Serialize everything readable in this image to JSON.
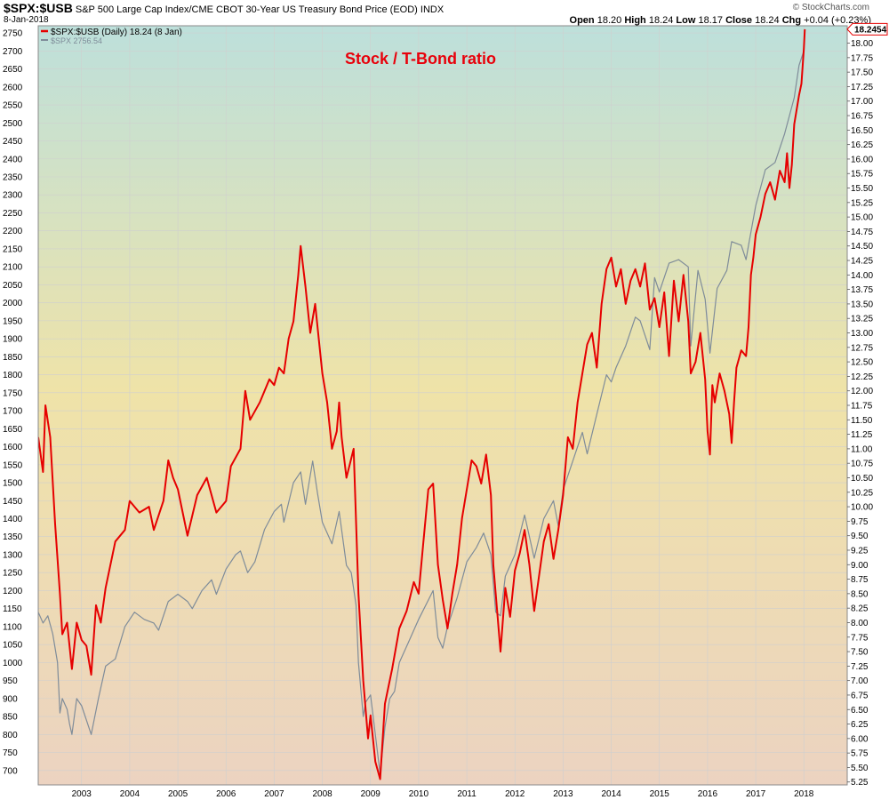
{
  "header": {
    "symbol": "$SPX:$USB",
    "description": "S&P 500 Large Cap Index/CME CBOT 30-Year US Treasury Bond Price (EOD)",
    "exchange": "INDX",
    "date": "8-Jan-2018",
    "watermark": "© StockCharts.com",
    "open_label": "Open",
    "open_value": "18.20",
    "high_label": "High",
    "high_value": "18.24",
    "low_label": "Low",
    "low_value": "18.17",
    "close_label": "Close",
    "close_value": "18.24",
    "chg_label": "Chg",
    "chg_value": "+0.04 (+0.23%)"
  },
  "legend": {
    "ratio_entry": "$SPX:$USB (Daily) 18.24 (8 Jan)",
    "spx_entry": "$SPX 2756.54"
  },
  "annotation": {
    "text": "Stock / T-Bond ratio",
    "color": "#e8000b"
  },
  "last_value_tag": "18.2454",
  "colors": {
    "ratio_line": "#e60000",
    "spx_line": "#7f8c99",
    "bg_top": "#bde0db",
    "bg_mid": "#efe3a8",
    "bg_bottom": "#ecd3c1",
    "grid": "#cfcfcf"
  },
  "chart_data": {
    "type": "line",
    "x_ticks": [
      "2003",
      "2004",
      "2005",
      "2006",
      "2007",
      "2008",
      "2009",
      "2010",
      "2011",
      "2012",
      "2013",
      "2014",
      "2015",
      "2016",
      "2017",
      "2018"
    ],
    "left_ticks": [
      "2750",
      "2700",
      "2650",
      "2600",
      "2550",
      "2500",
      "2450",
      "2400",
      "2350",
      "2300",
      "2250",
      "2200",
      "2150",
      "2100",
      "2050",
      "2000",
      "1950",
      "1900",
      "1850",
      "1800",
      "1750",
      "1700",
      "1650",
      "1600",
      "1550",
      "1500",
      "1450",
      "1400",
      "1350",
      "1300",
      "1250",
      "1200",
      "1150",
      "1100",
      "1050",
      "1000",
      "950",
      "900",
      "850",
      "800",
      "750",
      "700"
    ],
    "right_ticks": [
      "18.00",
      "17.75",
      "17.50",
      "17.25",
      "17.00",
      "16.75",
      "16.50",
      "16.25",
      "16.00",
      "15.75",
      "15.50",
      "15.25",
      "15.00",
      "14.75",
      "14.50",
      "14.25",
      "14.00",
      "13.75",
      "13.50",
      "13.25",
      "13.00",
      "12.75",
      "12.50",
      "12.25",
      "12.00",
      "11.75",
      "11.50",
      "11.25",
      "11.00",
      "10.75",
      "10.50",
      "10.25",
      "10.00",
      "9.75",
      "9.50",
      "9.25",
      "9.00",
      "8.75",
      "8.50",
      "8.25",
      "8.00",
      "7.75",
      "7.50",
      "7.25",
      "7.00",
      "6.75",
      "6.50",
      "6.25",
      "6.00",
      "5.75",
      "5.50",
      "5.25"
    ],
    "left_range": [
      660,
      2770
    ],
    "right_range": [
      5.2,
      18.3
    ],
    "x_range": [
      2002.1,
      2018.9
    ],
    "series": [
      {
        "name": "$SPX:$USB",
        "axis": "right",
        "points": [
          [
            2002.1,
            11.2
          ],
          [
            2002.2,
            10.6
          ],
          [
            2002.25,
            11.75
          ],
          [
            2002.35,
            11.2
          ],
          [
            2002.45,
            9.7
          ],
          [
            2002.55,
            8.5
          ],
          [
            2002.6,
            7.8
          ],
          [
            2002.7,
            8.0
          ],
          [
            2002.8,
            7.2
          ],
          [
            2002.9,
            8.0
          ],
          [
            2003.0,
            7.7
          ],
          [
            2003.1,
            7.6
          ],
          [
            2003.2,
            7.1
          ],
          [
            2003.3,
            8.3
          ],
          [
            2003.4,
            8.0
          ],
          [
            2003.5,
            8.6
          ],
          [
            2003.7,
            9.4
          ],
          [
            2003.9,
            9.6
          ],
          [
            2004.0,
            10.1
          ],
          [
            2004.2,
            9.9
          ],
          [
            2004.4,
            10.0
          ],
          [
            2004.5,
            9.6
          ],
          [
            2004.7,
            10.1
          ],
          [
            2004.8,
            10.8
          ],
          [
            2004.9,
            10.5
          ],
          [
            2005.0,
            10.3
          ],
          [
            2005.2,
            9.5
          ],
          [
            2005.4,
            10.2
          ],
          [
            2005.6,
            10.5
          ],
          [
            2005.8,
            9.9
          ],
          [
            2006.0,
            10.1
          ],
          [
            2006.1,
            10.7
          ],
          [
            2006.3,
            11.0
          ],
          [
            2006.4,
            12.0
          ],
          [
            2006.5,
            11.5
          ],
          [
            2006.7,
            11.8
          ],
          [
            2006.9,
            12.2
          ],
          [
            2007.0,
            12.1
          ],
          [
            2007.1,
            12.4
          ],
          [
            2007.2,
            12.3
          ],
          [
            2007.3,
            12.9
          ],
          [
            2007.4,
            13.2
          ],
          [
            2007.5,
            14.0
          ],
          [
            2007.55,
            14.5
          ],
          [
            2007.65,
            13.8
          ],
          [
            2007.75,
            13.0
          ],
          [
            2007.85,
            13.5
          ],
          [
            2007.95,
            12.7
          ],
          [
            2008.0,
            12.3
          ],
          [
            2008.1,
            11.8
          ],
          [
            2008.2,
            11.0
          ],
          [
            2008.3,
            11.3
          ],
          [
            2008.35,
            11.8
          ],
          [
            2008.4,
            11.2
          ],
          [
            2008.5,
            10.5
          ],
          [
            2008.65,
            11.0
          ],
          [
            2008.75,
            8.5
          ],
          [
            2008.85,
            7.0
          ],
          [
            2008.95,
            6.0
          ],
          [
            2009.0,
            6.4
          ],
          [
            2009.1,
            5.6
          ],
          [
            2009.2,
            5.3
          ],
          [
            2009.3,
            6.6
          ],
          [
            2009.45,
            7.2
          ],
          [
            2009.6,
            7.9
          ],
          [
            2009.75,
            8.2
          ],
          [
            2009.9,
            8.7
          ],
          [
            2010.0,
            8.5
          ],
          [
            2010.1,
            9.4
          ],
          [
            2010.2,
            10.3
          ],
          [
            2010.3,
            10.4
          ],
          [
            2010.4,
            9.0
          ],
          [
            2010.5,
            8.4
          ],
          [
            2010.6,
            7.9
          ],
          [
            2010.7,
            8.5
          ],
          [
            2010.8,
            9.0
          ],
          [
            2010.9,
            9.8
          ],
          [
            2011.0,
            10.3
          ],
          [
            2011.1,
            10.8
          ],
          [
            2011.2,
            10.7
          ],
          [
            2011.3,
            10.4
          ],
          [
            2011.4,
            10.9
          ],
          [
            2011.5,
            10.2
          ],
          [
            2011.55,
            9.0
          ],
          [
            2011.6,
            8.5
          ],
          [
            2011.7,
            7.5
          ],
          [
            2011.8,
            8.6
          ],
          [
            2011.9,
            8.1
          ],
          [
            2012.0,
            8.9
          ],
          [
            2012.1,
            9.2
          ],
          [
            2012.2,
            9.6
          ],
          [
            2012.3,
            9.0
          ],
          [
            2012.4,
            8.2
          ],
          [
            2012.5,
            8.8
          ],
          [
            2012.6,
            9.4
          ],
          [
            2012.7,
            9.7
          ],
          [
            2012.8,
            9.1
          ],
          [
            2012.9,
            9.6
          ],
          [
            2013.0,
            10.2
          ],
          [
            2013.1,
            11.2
          ],
          [
            2013.2,
            11.0
          ],
          [
            2013.3,
            11.8
          ],
          [
            2013.4,
            12.3
          ],
          [
            2013.5,
            12.8
          ],
          [
            2013.6,
            13.0
          ],
          [
            2013.7,
            12.4
          ],
          [
            2013.8,
            13.5
          ],
          [
            2013.9,
            14.1
          ],
          [
            2014.0,
            14.3
          ],
          [
            2014.1,
            13.8
          ],
          [
            2014.2,
            14.1
          ],
          [
            2014.3,
            13.5
          ],
          [
            2014.4,
            13.9
          ],
          [
            2014.5,
            14.1
          ],
          [
            2014.6,
            13.8
          ],
          [
            2014.7,
            14.2
          ],
          [
            2014.8,
            13.4
          ],
          [
            2014.9,
            13.6
          ],
          [
            2015.0,
            13.1
          ],
          [
            2015.1,
            13.7
          ],
          [
            2015.2,
            12.6
          ],
          [
            2015.3,
            13.9
          ],
          [
            2015.4,
            13.2
          ],
          [
            2015.5,
            14.0
          ],
          [
            2015.6,
            13.2
          ],
          [
            2015.65,
            12.3
          ],
          [
            2015.75,
            12.5
          ],
          [
            2015.85,
            13.0
          ],
          [
            2015.95,
            12.2
          ],
          [
            2016.0,
            11.3
          ],
          [
            2016.05,
            10.9
          ],
          [
            2016.1,
            12.1
          ],
          [
            2016.15,
            11.8
          ],
          [
            2016.25,
            12.3
          ],
          [
            2016.35,
            12.0
          ],
          [
            2016.45,
            11.6
          ],
          [
            2016.5,
            11.1
          ],
          [
            2016.55,
            11.8
          ],
          [
            2016.6,
            12.4
          ],
          [
            2016.7,
            12.7
          ],
          [
            2016.8,
            12.6
          ],
          [
            2016.85,
            13.1
          ],
          [
            2016.9,
            14.0
          ],
          [
            2016.95,
            14.3
          ],
          [
            2017.0,
            14.7
          ],
          [
            2017.1,
            15.0
          ],
          [
            2017.2,
            15.4
          ],
          [
            2017.3,
            15.6
          ],
          [
            2017.4,
            15.3
          ],
          [
            2017.5,
            15.8
          ],
          [
            2017.6,
            15.6
          ],
          [
            2017.65,
            16.1
          ],
          [
            2017.7,
            15.5
          ],
          [
            2017.75,
            15.9
          ],
          [
            2017.8,
            16.6
          ],
          [
            2017.9,
            17.1
          ],
          [
            2017.95,
            17.3
          ],
          [
            2018.0,
            17.9
          ],
          [
            2018.02,
            18.24
          ]
        ]
      },
      {
        "name": "$SPX",
        "axis": "left",
        "points": [
          [
            2002.1,
            1140
          ],
          [
            2002.2,
            1110
          ],
          [
            2002.3,
            1130
          ],
          [
            2002.4,
            1080
          ],
          [
            2002.5,
            1000
          ],
          [
            2002.55,
            860
          ],
          [
            2002.6,
            900
          ],
          [
            2002.7,
            870
          ],
          [
            2002.75,
            830
          ],
          [
            2002.8,
            800
          ],
          [
            2002.9,
            900
          ],
          [
            2003.0,
            880
          ],
          [
            2003.1,
            840
          ],
          [
            2003.2,
            800
          ],
          [
            2003.35,
            900
          ],
          [
            2003.5,
            990
          ],
          [
            2003.7,
            1010
          ],
          [
            2003.9,
            1100
          ],
          [
            2004.1,
            1140
          ],
          [
            2004.3,
            1120
          ],
          [
            2004.5,
            1110
          ],
          [
            2004.6,
            1090
          ],
          [
            2004.8,
            1170
          ],
          [
            2005.0,
            1190
          ],
          [
            2005.2,
            1170
          ],
          [
            2005.3,
            1150
          ],
          [
            2005.5,
            1200
          ],
          [
            2005.7,
            1230
          ],
          [
            2005.8,
            1190
          ],
          [
            2006.0,
            1260
          ],
          [
            2006.2,
            1300
          ],
          [
            2006.3,
            1310
          ],
          [
            2006.45,
            1250
          ],
          [
            2006.6,
            1280
          ],
          [
            2006.8,
            1370
          ],
          [
            2007.0,
            1420
          ],
          [
            2007.15,
            1440
          ],
          [
            2007.2,
            1390
          ],
          [
            2007.4,
            1500
          ],
          [
            2007.55,
            1530
          ],
          [
            2007.65,
            1440
          ],
          [
            2007.8,
            1560
          ],
          [
            2007.9,
            1470
          ],
          [
            2008.0,
            1390
          ],
          [
            2008.2,
            1330
          ],
          [
            2008.35,
            1420
          ],
          [
            2008.5,
            1270
          ],
          [
            2008.6,
            1250
          ],
          [
            2008.7,
            1160
          ],
          [
            2008.75,
            1000
          ],
          [
            2008.85,
            850
          ],
          [
            2008.9,
            890
          ],
          [
            2009.0,
            910
          ],
          [
            2009.1,
            800
          ],
          [
            2009.2,
            690
          ],
          [
            2009.3,
            820
          ],
          [
            2009.4,
            900
          ],
          [
            2009.5,
            920
          ],
          [
            2009.6,
            1000
          ],
          [
            2009.8,
            1060
          ],
          [
            2010.0,
            1120
          ],
          [
            2010.3,
            1200
          ],
          [
            2010.4,
            1070
          ],
          [
            2010.5,
            1040
          ],
          [
            2010.6,
            1100
          ],
          [
            2010.8,
            1180
          ],
          [
            2011.0,
            1280
          ],
          [
            2011.2,
            1320
          ],
          [
            2011.35,
            1360
          ],
          [
            2011.5,
            1300
          ],
          [
            2011.6,
            1140
          ],
          [
            2011.7,
            1130
          ],
          [
            2011.8,
            1240
          ],
          [
            2012.0,
            1300
          ],
          [
            2012.2,
            1410
          ],
          [
            2012.4,
            1290
          ],
          [
            2012.6,
            1400
          ],
          [
            2012.8,
            1450
          ],
          [
            2012.9,
            1380
          ],
          [
            2013.0,
            1480
          ],
          [
            2013.2,
            1560
          ],
          [
            2013.4,
            1640
          ],
          [
            2013.5,
            1580
          ],
          [
            2013.7,
            1690
          ],
          [
            2013.9,
            1800
          ],
          [
            2014.0,
            1780
          ],
          [
            2014.1,
            1820
          ],
          [
            2014.3,
            1880
          ],
          [
            2014.5,
            1960
          ],
          [
            2014.6,
            1950
          ],
          [
            2014.8,
            1870
          ],
          [
            2014.9,
            2070
          ],
          [
            2015.0,
            2030
          ],
          [
            2015.2,
            2110
          ],
          [
            2015.4,
            2120
          ],
          [
            2015.6,
            2100
          ],
          [
            2015.65,
            1880
          ],
          [
            2015.8,
            2090
          ],
          [
            2015.95,
            2010
          ],
          [
            2016.05,
            1860
          ],
          [
            2016.2,
            2040
          ],
          [
            2016.4,
            2090
          ],
          [
            2016.5,
            2170
          ],
          [
            2016.7,
            2160
          ],
          [
            2016.8,
            2120
          ],
          [
            2016.85,
            2160
          ],
          [
            2017.0,
            2270
          ],
          [
            2017.2,
            2370
          ],
          [
            2017.4,
            2390
          ],
          [
            2017.6,
            2470
          ],
          [
            2017.8,
            2570
          ],
          [
            2017.9,
            2660
          ],
          [
            2018.0,
            2700
          ],
          [
            2018.02,
            2756
          ]
        ]
      }
    ]
  }
}
